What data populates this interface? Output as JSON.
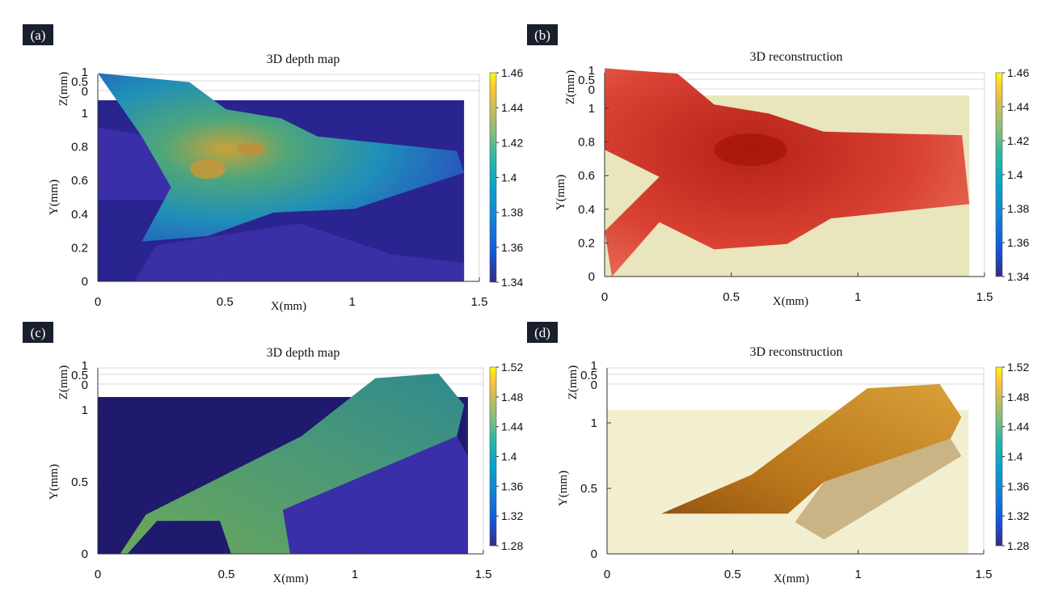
{
  "chart_data": [
    {
      "panel": "(a)",
      "type": "surface-depth-map",
      "title": "3D depth map",
      "xlabel": "X(mm)",
      "ylabel": "Y(mm)",
      "zlabel": "Z(mm)",
      "xticks": [
        "0",
        "0.5",
        "1",
        "1.5"
      ],
      "yticks": [
        "0",
        "0.2",
        "0.4",
        "0.6",
        "0.8",
        "1"
      ],
      "zticks": [
        "0",
        "0.5",
        "1"
      ],
      "xlim": [
        0,
        1.5
      ],
      "ylim": [
        0,
        1.1
      ],
      "colorbar": {
        "ticks": [
          "1.46",
          "1.44",
          "1.42",
          "1.4",
          "1.38",
          "1.36",
          "1.34"
        ],
        "range": [
          1.34,
          1.46
        ],
        "colormap": "parula"
      },
      "background_color": "#2a2490"
    },
    {
      "panel": "(b)",
      "type": "surface-reconstruction",
      "title": "3D reconstruction",
      "xlabel": "X(mm)",
      "ylabel": "Y(mm)",
      "zlabel": "Z(mm)",
      "xticks": [
        "0",
        "0.5",
        "1",
        "1.5"
      ],
      "yticks": [
        "0",
        "0.2",
        "0.4",
        "0.6",
        "0.8",
        "1"
      ],
      "zticks": [
        "0",
        "0.5",
        "1"
      ],
      "xlim": [
        0,
        1.5
      ],
      "ylim": [
        0,
        1.1
      ],
      "colorbar": {
        "ticks": [
          "1.46",
          "1.44",
          "1.42",
          "1.4",
          "1.38",
          "1.36",
          "1.34"
        ],
        "range": [
          1.34,
          1.46
        ],
        "colormap": "parula"
      },
      "texture_color": "#d42a1e",
      "background_color": "#e9e5bd"
    },
    {
      "panel": "(c)",
      "type": "surface-depth-map",
      "title": "3D depth map",
      "xlabel": "X(mm)",
      "ylabel": "Y(mm)",
      "zlabel": "Z(mm)",
      "xticks": [
        "0",
        "0.5",
        "1",
        "1.5"
      ],
      "yticks": [
        "0",
        "0.5",
        "1"
      ],
      "zticks": [
        "0",
        "0.5",
        "1"
      ],
      "xlim": [
        0,
        1.5
      ],
      "ylim": [
        0,
        1.1
      ],
      "colorbar": {
        "ticks": [
          "1.52",
          "1.48",
          "1.44",
          "1.4",
          "1.36",
          "1.32",
          "1.28"
        ],
        "range": [
          1.28,
          1.52
        ],
        "colormap": "parula"
      },
      "background_color": "#1f1a6e"
    },
    {
      "panel": "(d)",
      "type": "surface-reconstruction",
      "title": "3D reconstruction",
      "xlabel": "X(mm)",
      "ylabel": "Y(mm)",
      "zlabel": "Z(mm)",
      "xticks": [
        "0",
        "0.5",
        "1",
        "1.5"
      ],
      "yticks": [
        "0",
        "0.5",
        "1"
      ],
      "zticks": [
        "0",
        "0.5",
        "1"
      ],
      "xlim": [
        0,
        1.5
      ],
      "ylim": [
        0,
        1.1
      ],
      "colorbar": {
        "ticks": [
          "1.52",
          "1.48",
          "1.44",
          "1.4",
          "1.36",
          "1.32",
          "1.28"
        ],
        "range": [
          1.28,
          1.52
        ],
        "colormap": "parula"
      },
      "texture_color": "#c98a1c",
      "background_color": "#f2efd0"
    }
  ]
}
